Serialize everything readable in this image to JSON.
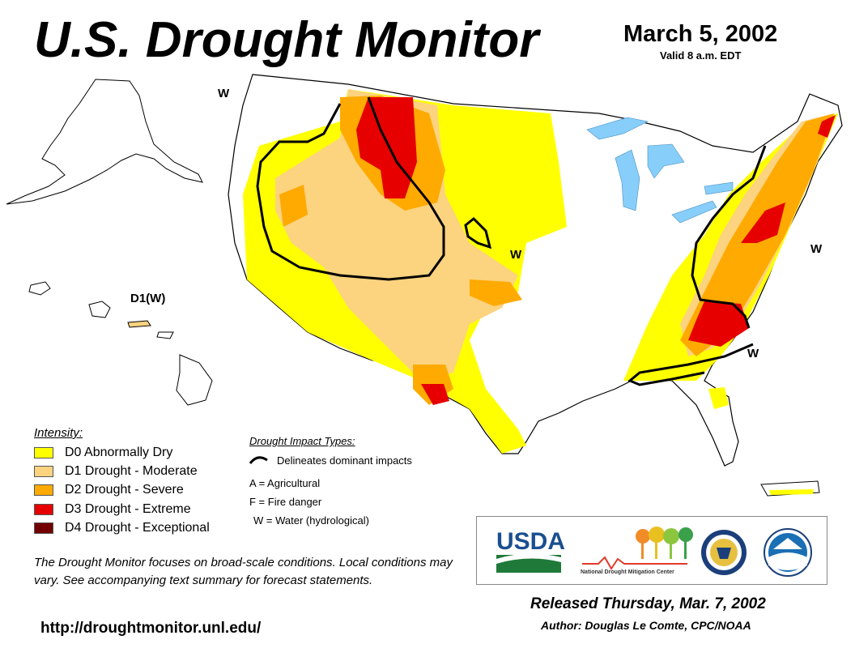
{
  "header": {
    "title": "U.S. Drought Monitor",
    "date": "March 5, 2002",
    "valid": "Valid 8 a.m. EDT"
  },
  "map_labels": {
    "w_northwest": "W",
    "w_plains": "W",
    "w_northeast": "W",
    "w_southeast": "W",
    "hawaii": "D1(W)"
  },
  "legend": {
    "title": "Intensity:",
    "items": [
      {
        "label": "D0 Abnormally Dry",
        "color": "#ffff00"
      },
      {
        "label": "D1 Drought - Moderate",
        "color": "#fcd37f"
      },
      {
        "label": "D2 Drought - Severe",
        "color": "#ffaa00"
      },
      {
        "label": "D3 Drought - Extreme",
        "color": "#e60000"
      },
      {
        "label": "D4 Drought - Exceptional",
        "color": "#730000"
      }
    ]
  },
  "impacts": {
    "title": "Drought Impact Types:",
    "line_label": "Delineates dominant impacts",
    "types": [
      "A = Agricultural",
      "F = Fire danger",
      "W = Water (hydrological)"
    ]
  },
  "note": "The Drought Monitor focuses on broad-scale conditions. Local conditions may vary. See accompanying text summary for forecast statements.",
  "url": "http://droughtmonitor.unl.edu/",
  "logos": {
    "usda": "USDA",
    "ndmc": "National Drought Mitigation Center"
  },
  "footer": {
    "released": "Released Thursday, Mar. 7, 2002",
    "author": "Author: Douglas Le Comte, CPC/NOAA"
  }
}
